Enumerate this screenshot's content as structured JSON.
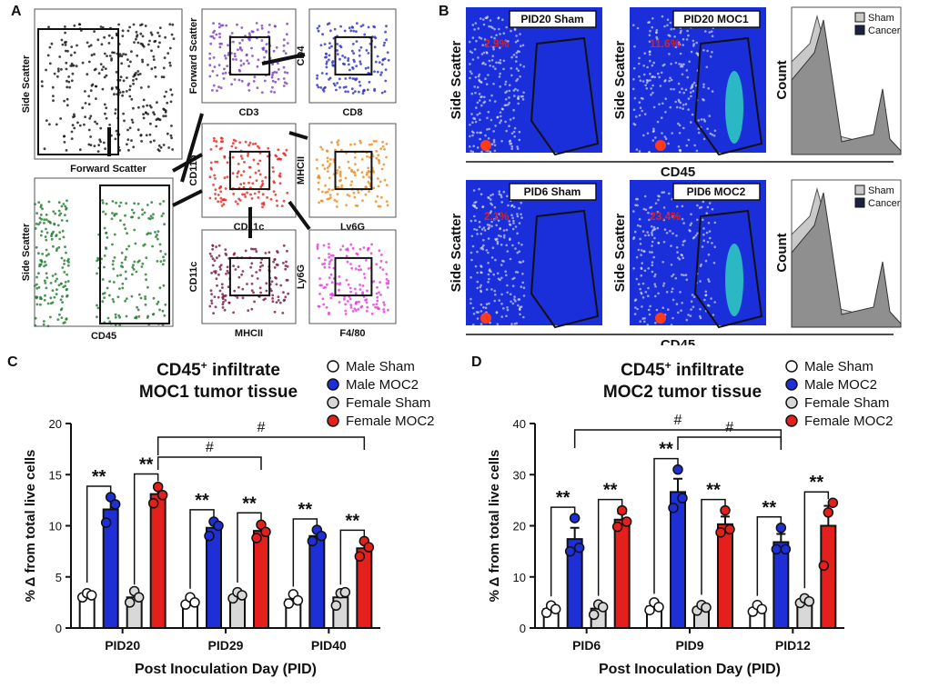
{
  "panels": {
    "a": "A",
    "b": "B",
    "c": "C",
    "d": "D"
  },
  "panel_a": {
    "plots": [
      {
        "xlabel": "Forward Scatter",
        "ylabel": "Side Scatter",
        "color": "#111111"
      },
      {
        "xlabel": "CD45",
        "ylabel": "Side Scatter",
        "color": "#1f7a2c"
      },
      {
        "xlabel": "CD3",
        "ylabel": "Forward Scatter",
        "color": "#7b3fbf"
      },
      {
        "xlabel": "CD8",
        "ylabel": "CD4",
        "color": "#2b2fc9"
      },
      {
        "xlabel": "CD11c",
        "ylabel": "CD11b",
        "color": "#e3261e"
      },
      {
        "xlabel": "Ly6G",
        "ylabel": "MHCII",
        "color": "#f08a1c"
      },
      {
        "xlabel": "MHCII",
        "ylabel": "CD11c",
        "color": "#7a1638"
      },
      {
        "xlabel": "F4/80",
        "ylabel": "Ly6G",
        "color": "#e63adf"
      }
    ]
  },
  "panel_b": {
    "row1": {
      "sham_label": "PID20 Sham",
      "sham_pct": "2.9%",
      "cancer_label": "PID20 MOC1",
      "cancer_pct": "11.6%"
    },
    "row2": {
      "sham_label": "PID6 Sham",
      "sham_pct": "2.1%",
      "cancer_label": "PID6 MOC2",
      "cancer_pct": "23.4%"
    },
    "ylabel": "Side Scatter",
    "xlabel": "CD45",
    "count_label": "Count",
    "legend": [
      "Sham",
      "Cancer"
    ]
  },
  "chart_data": [
    {
      "type": "bar",
      "title_line1": "CD45",
      "title_sup": "+",
      "title_line1b": " infiltrate",
      "title_line2": "MOC1 tumor tissue",
      "ylabel": "% Δ from total live cells",
      "xlabel": "Post Inoculation Day (PID)",
      "ylim": [
        0,
        20
      ],
      "yticks": [
        "0",
        "5",
        "10",
        "15",
        "20"
      ],
      "categories": [
        "PID20",
        "PID29",
        "PID40"
      ],
      "series": [
        {
          "name": "Male Sham",
          "color": "#ffffff",
          "values": [
            3.2,
            2.6,
            2.8
          ],
          "errors": [
            0.3,
            0.3,
            0.4
          ],
          "points": [
            [
              3.0,
              3.4,
              3.2
            ],
            [
              2.3,
              3.0,
              2.5
            ],
            [
              2.4,
              3.3,
              2.7
            ]
          ]
        },
        {
          "name": "Male MOC2",
          "color": "#1f2fd6",
          "values": [
            11.6,
            9.8,
            9.0
          ],
          "errors": [
            1.0,
            0.7,
            0.5
          ],
          "points": [
            [
              10.3,
              12.8,
              12.1
            ],
            [
              9.0,
              10.4,
              10.0
            ],
            [
              8.5,
              9.6,
              9.0
            ]
          ]
        },
        {
          "name": "Female Sham",
          "color": "#d8d8d8",
          "values": [
            3.0,
            3.2,
            3.0
          ],
          "errors": [
            0.4,
            0.3,
            0.6
          ],
          "points": [
            [
              2.5,
              3.6,
              3.0
            ],
            [
              2.9,
              3.5,
              3.2
            ],
            [
              2.2,
              3.4,
              3.5
            ]
          ]
        },
        {
          "name": "Female MOC2",
          "color": "#e3201c",
          "values": [
            13.1,
            9.5,
            7.8
          ],
          "errors": [
            0.9,
            0.7,
            0.6
          ],
          "points": [
            [
              12.2,
              13.8,
              13.0
            ],
            [
              8.8,
              10.1,
              9.4
            ],
            [
              7.0,
              8.5,
              7.9
            ]
          ]
        }
      ],
      "significance": {
        "pair": "**",
        "hash": "#"
      }
    },
    {
      "type": "bar",
      "title_line1": "CD45",
      "title_sup": "+",
      "title_line1b": " infiltrate",
      "title_line2": "MOC2 tumor tissue",
      "ylabel": "% Δ from total live cells",
      "xlabel": "Post Inoculation Day (PID)",
      "ylim": [
        0,
        40
      ],
      "yticks": [
        "0",
        "10",
        "20",
        "30",
        "40"
      ],
      "categories": [
        "PID6",
        "PID9",
        "PID12"
      ],
      "series": [
        {
          "name": "Male Sham",
          "color": "#ffffff",
          "values": [
            3.7,
            4.2,
            3.8
          ],
          "errors": [
            0.5,
            0.6,
            0.5
          ],
          "points": [
            [
              3.0,
              4.4,
              3.7
            ],
            [
              3.5,
              5.0,
              4.1
            ],
            [
              3.2,
              4.5,
              3.7
            ]
          ]
        },
        {
          "name": "Male MOC2",
          "color": "#1f2fd6",
          "values": [
            17.4,
            26.6,
            16.8
          ],
          "errors": [
            2.2,
            2.6,
            1.6
          ],
          "points": [
            [
              15.0,
              21.5,
              15.7
            ],
            [
              23.5,
              31.0,
              25.4
            ],
            [
              15.4,
              19.6,
              15.4
            ]
          ]
        },
        {
          "name": "Female Sham",
          "color": "#d8d8d8",
          "values": [
            3.8,
            4.0,
            5.3
          ],
          "errors": [
            0.8,
            0.6,
            0.4
          ],
          "points": [
            [
              2.6,
              4.6,
              4.1
            ],
            [
              3.4,
              4.5,
              4.0
            ],
            [
              4.9,
              5.8,
              5.2
            ]
          ]
        },
        {
          "name": "Female MOC2",
          "color": "#e3201c",
          "values": [
            21.2,
            20.3,
            20.0
          ],
          "errors": [
            1.2,
            1.5,
            3.9
          ],
          "points": [
            [
              19.8,
              23.0,
              20.8
            ],
            [
              18.7,
              23.0,
              19.3
            ],
            [
              12.2,
              22.6,
              24.5
            ]
          ]
        }
      ],
      "significance": {
        "pair": "**",
        "hash": "#"
      }
    }
  ],
  "legend_items": [
    "Male Sham",
    "Male MOC2",
    "Female Sham",
    "Female MOC2"
  ]
}
